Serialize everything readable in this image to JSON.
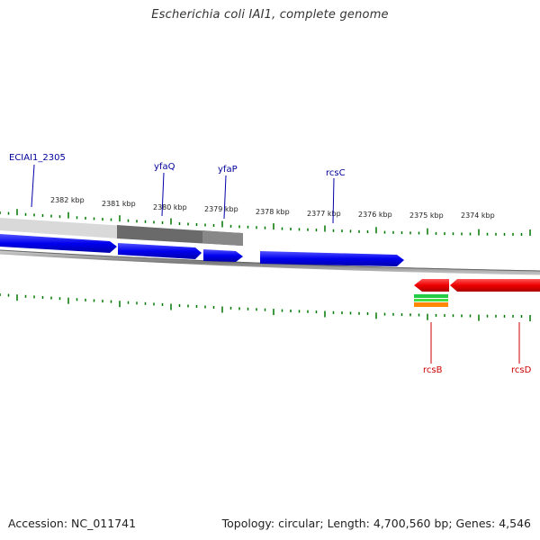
{
  "title": "Escherichia coli IAI1, complete genome",
  "footer": {
    "accession": "Accession: NC_011741",
    "summary": "Topology: circular; Length: 4,700,560 bp; Genes: 4,546"
  },
  "colors": {
    "forward_gene": "#0000ee",
    "reverse_gene": "#ee0000",
    "gene_label_forward": "#000099",
    "gene_label_reverse": "#cc0000",
    "tick": "#007700",
    "backbone": "#888888",
    "feature_green": "#22cc44",
    "feature_orange": "#ff8800"
  },
  "scale_labels": [
    "2382 kbp",
    "2381 kbp",
    "2380 kbp",
    "2379 kbp",
    "2378 kbp",
    "2377 kbp",
    "2376 kbp",
    "2375 kbp",
    "2374 kbp"
  ],
  "gene_labels": {
    "forward": [
      "ECIAI1_2305",
      "yfaQ",
      "yfaP",
      "rcsC"
    ],
    "reverse": [
      "rcsB",
      "rcsD"
    ]
  }
}
